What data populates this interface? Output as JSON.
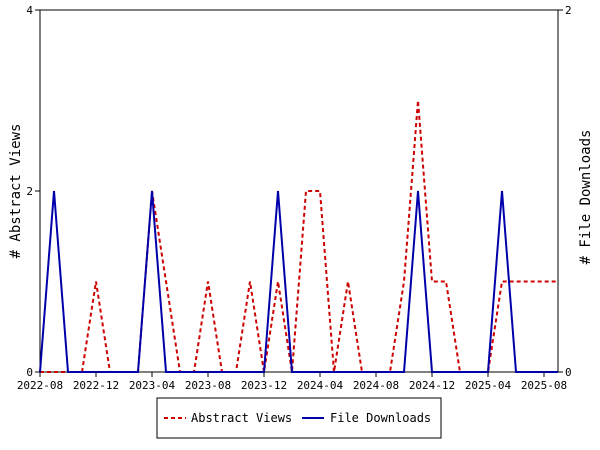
{
  "chart_data": {
    "type": "line",
    "title": "",
    "x": [
      "2022-08",
      "2022-09",
      "2022-10",
      "2022-11",
      "2022-12",
      "2023-01",
      "2023-02",
      "2023-03",
      "2023-04",
      "2023-05",
      "2023-06",
      "2023-07",
      "2023-08",
      "2023-09",
      "2023-10",
      "2023-11",
      "2023-12",
      "2024-01",
      "2024-02",
      "2024-03",
      "2024-04",
      "2024-05",
      "2024-06",
      "2024-07",
      "2024-08",
      "2024-09",
      "2024-10",
      "2024-11",
      "2024-12",
      "2025-01",
      "2025-02",
      "2025-03",
      "2025-04",
      "2025-05",
      "2025-06",
      "2025-07",
      "2025-08",
      "2025-09"
    ],
    "x_tick_labels": [
      "2022-08",
      "2022-12",
      "2023-04",
      "2023-08",
      "2023-12",
      "2024-04",
      "2024-08",
      "2024-12",
      "2025-04",
      "2025-08"
    ],
    "x_tick_positions": [
      "2022-08",
      "2022-12",
      "2023-04",
      "2023-08",
      "2023-12",
      "2024-04",
      "2024-08",
      "2024-12",
      "2025-04",
      "2025-08"
    ],
    "ylabel_left": "# Abstract Views",
    "ylabel_right": "# File Downloads",
    "ylim_left": [
      0,
      4
    ],
    "ylim_right": [
      0,
      2
    ],
    "y_ticks_left": [
      "0",
      "2",
      "4"
    ],
    "y_ticks_right": [
      "0",
      "2"
    ],
    "grid": false,
    "legend_position": "bottom",
    "series": [
      {
        "name": "Abstract Views",
        "axis": "left",
        "color": "#cc0000",
        "dash": true,
        "values": [
          0,
          0,
          0,
          0,
          1,
          0,
          0,
          0,
          2,
          1,
          0,
          0,
          1,
          0,
          0,
          1,
          0,
          1,
          0,
          2,
          2,
          0,
          1,
          0,
          0,
          0,
          1,
          3,
          1,
          1,
          0,
          0,
          0,
          1,
          1,
          1,
          1,
          1
        ]
      },
      {
        "name": "File Downloads",
        "axis": "right",
        "color": "#0000aa",
        "dash": false,
        "values": [
          0,
          1,
          0,
          0,
          0,
          0,
          0,
          0,
          1,
          0,
          0,
          0,
          0,
          0,
          0,
          0,
          0,
          1,
          0,
          0,
          0,
          0,
          0,
          0,
          0,
          0,
          0,
          1,
          0,
          0,
          0,
          0,
          0,
          1,
          0,
          0,
          0,
          0
        ]
      }
    ]
  }
}
